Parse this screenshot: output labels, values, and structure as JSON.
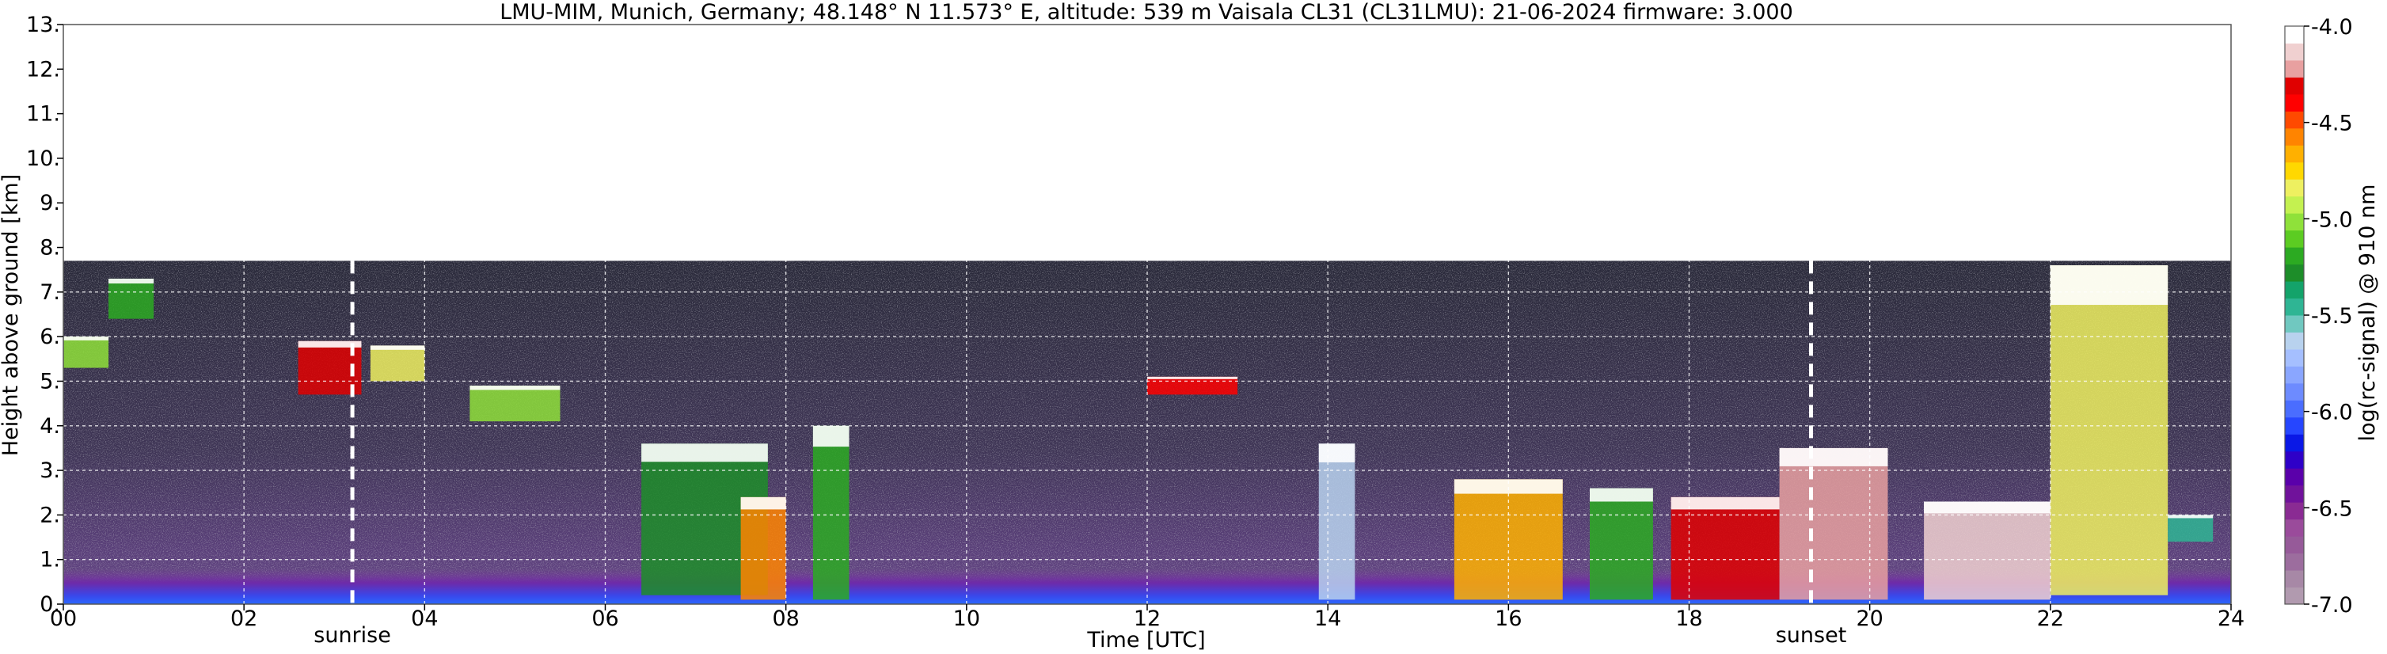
{
  "chart_data": {
    "type": "heatmap",
    "title": "LMU-MIM, Munich, Germany; 48.148° N 11.573° E, altitude: 539 m    Vaisala CL31 (CL31LMU): 21-06-2024    firmware: 3.000",
    "xlabel": "Time [UTC]",
    "ylabel": "Height above ground [km]",
    "xlim": [
      0,
      24
    ],
    "ylim": [
      0,
      13
    ],
    "x_ticks": [
      0,
      2,
      4,
      6,
      8,
      10,
      12,
      14,
      16,
      18,
      20,
      22,
      24
    ],
    "x_tick_labels": [
      "00",
      "02",
      "04",
      "06",
      "08",
      "10",
      "12",
      "14",
      "16",
      "18",
      "20",
      "22",
      "24"
    ],
    "y_ticks": [
      0,
      1,
      2,
      3,
      4,
      5,
      6,
      7,
      8,
      9,
      10,
      11,
      12,
      13
    ],
    "y_tick_labels": [
      "0.",
      "1.",
      "2.",
      "3.",
      "4.",
      "5.",
      "6.",
      "7.",
      "8.",
      "9.",
      "10.",
      "11.",
      "12.",
      "13."
    ],
    "data_top_km": 7.7,
    "grid": true,
    "markers": [
      {
        "label": "sunrise",
        "time": 3.2
      },
      {
        "label": "sunset",
        "time": 19.35
      }
    ],
    "colorbar": {
      "label": "log(rc-signal) @ 910 nm",
      "range": [
        -7.0,
        -4.0
      ],
      "ticks": [
        -7.0,
        -6.5,
        -6.0,
        -5.5,
        -5.0,
        -4.5,
        -4.0
      ],
      "tick_labels": [
        "-7.0",
        "-6.5",
        "-6.0",
        "-5.5",
        "-5.0",
        "-4.5",
        "-4.0"
      ],
      "colors": [
        "#b19aaf",
        "#a788a6",
        "#9c6d9e",
        "#965a99",
        "#9a4b9b",
        "#8a2b93",
        "#70129b",
        "#5a00aa",
        "#2e00c8",
        "#0a18e6",
        "#2646ff",
        "#4a6dff",
        "#6d8bff",
        "#8aa6ff",
        "#a5bfff",
        "#b8d2ee",
        "#70c8c0",
        "#2fb594",
        "#14a36a",
        "#1d8d29",
        "#2caa22",
        "#5ccc22",
        "#8fe13a",
        "#c4f150",
        "#eef060",
        "#ffd800",
        "#ffb000",
        "#ff8400",
        "#ff4a00",
        "#ff0000",
        "#e00000",
        "#e8a0a0",
        "#f0d0d0",
        "#ffffff"
      ]
    },
    "features": [
      {
        "kind": "boundary_layer",
        "from": 0,
        "to": 24,
        "height_km": 0.8,
        "value": -6.2
      },
      {
        "kind": "cloud_layer",
        "from": 0.0,
        "to": 0.5,
        "base_km": 5.3,
        "top_km": 6.0,
        "value": -5.0
      },
      {
        "kind": "cloud_layer",
        "from": 0.5,
        "to": 1.0,
        "base_km": 6.4,
        "top_km": 7.3,
        "value": -5.2
      },
      {
        "kind": "cloud_layer",
        "from": 2.6,
        "to": 3.3,
        "base_km": 4.7,
        "top_km": 5.9,
        "value": -4.3
      },
      {
        "kind": "cloud_layer",
        "from": 3.4,
        "to": 4.0,
        "base_km": 5.0,
        "top_km": 5.8,
        "value": -4.8
      },
      {
        "kind": "cloud_layer",
        "from": 4.5,
        "to": 5.5,
        "base_km": 4.1,
        "top_km": 4.9,
        "value": -5.0
      },
      {
        "kind": "cloud_layer",
        "from": 6.4,
        "to": 7.8,
        "base_km": 0.2,
        "top_km": 3.6,
        "value": -5.3
      },
      {
        "kind": "cloud_layer",
        "from": 7.5,
        "to": 8.0,
        "base_km": 0.1,
        "top_km": 2.4,
        "value": -4.6
      },
      {
        "kind": "cloud_layer",
        "from": 8.3,
        "to": 8.7,
        "base_km": 0.1,
        "top_km": 4.0,
        "value": -5.2
      },
      {
        "kind": "cloud_layer",
        "from": 12.0,
        "to": 13.0,
        "base_km": 4.7,
        "top_km": 5.1,
        "value": -4.4
      },
      {
        "kind": "cloud_layer",
        "from": 13.9,
        "to": 14.3,
        "base_km": 0.1,
        "top_km": 3.6,
        "value": -5.6
      },
      {
        "kind": "cloud_layer",
        "from": 15.4,
        "to": 16.6,
        "base_km": 0.1,
        "top_km": 2.8,
        "value": -4.7
      },
      {
        "kind": "cloud_layer",
        "from": 16.9,
        "to": 17.6,
        "base_km": 0.1,
        "top_km": 2.6,
        "value": -5.2
      },
      {
        "kind": "cloud_layer",
        "from": 17.8,
        "to": 19.0,
        "base_km": 0.1,
        "top_km": 2.4,
        "value": -4.3
      },
      {
        "kind": "cloud_layer",
        "from": 19.0,
        "to": 20.2,
        "base_km": 0.1,
        "top_km": 3.5,
        "value": -4.2
      },
      {
        "kind": "cloud_layer",
        "from": 20.6,
        "to": 22.0,
        "base_km": 0.1,
        "top_km": 2.3,
        "value": -4.1
      },
      {
        "kind": "cloud_layer",
        "from": 22.0,
        "to": 23.3,
        "base_km": 0.2,
        "top_km": 7.6,
        "value": -4.8
      },
      {
        "kind": "cloud_layer",
        "from": 23.3,
        "to": 23.8,
        "base_km": 1.4,
        "top_km": 2.0,
        "value": -5.5
      }
    ]
  }
}
